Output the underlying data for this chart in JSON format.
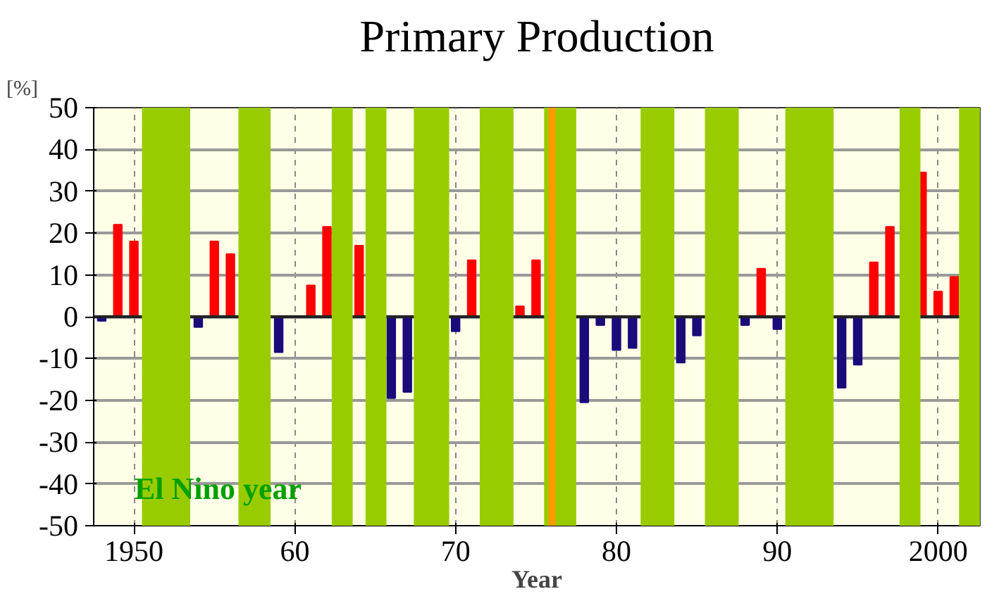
{
  "chart_data": {
    "type": "bar",
    "title": "Primary Production",
    "xlabel": "Year",
    "ylabel": "[%]",
    "x": [
      1948,
      1949,
      1950,
      1954,
      1955,
      1956,
      1959,
      1960,
      1961,
      1962,
      1964,
      1966,
      1967,
      1970,
      1971,
      1974,
      1975,
      1978,
      1979,
      1980,
      1981,
      1984,
      1985,
      1988,
      1989,
      1990,
      1994,
      1995,
      1996,
      1997,
      1999,
      2000,
      2001
    ],
    "values": [
      -1,
      22,
      18,
      -2.5,
      18,
      15,
      -8.5,
      null,
      7.5,
      21.5,
      17,
      -19.5,
      -18,
      -3.5,
      13.5,
      2.5,
      13.5,
      -20.5,
      -2,
      -8,
      -7.5,
      -11,
      -4.5,
      -2,
      11.5,
      -3,
      -17,
      -11.5,
      13,
      21.5,
      34.5,
      6,
      9.5
    ],
    "colors": [
      "#1a0a7a",
      "#ff0000",
      "#ff0000",
      "#1a0a7a",
      "#ff0000",
      "#ff0000",
      "#1a0a7a",
      "#1a0a7a",
      "#ff0000",
      "#ff0000",
      "#ff0000",
      "#1a0a7a",
      "#1a0a7a",
      "#1a0a7a",
      "#ff0000",
      "#ff0000",
      "#ff0000",
      "#1a0a7a",
      "#1a0a7a",
      "#1a0a7a",
      "#1a0a7a",
      "#1a0a7a",
      "#1a0a7a",
      "#1a0a7a",
      "#ff0000",
      "#1a0a7a",
      "#1a0a7a",
      "#1a0a7a",
      "#ff0000",
      "#ff0000",
      "#ff0000",
      "#ff0000",
      "#ff0000"
    ],
    "xlim": [
      1947.5,
      2002.6
    ],
    "ylim": [
      -50,
      50
    ],
    "xticks": [
      {
        "value": 1950,
        "label": "1950"
      },
      {
        "value": 1960,
        "label": "60"
      },
      {
        "value": 1970,
        "label": "70"
      },
      {
        "value": 1980,
        "label": "80"
      },
      {
        "value": 1990,
        "label": "90"
      },
      {
        "value": 2000,
        "label": "2000"
      }
    ],
    "yticks": [
      -50,
      -40,
      -30,
      -20,
      -10,
      0,
      10,
      20,
      30,
      40,
      50
    ],
    "grid": true,
    "bands": [
      {
        "axis": "x",
        "from": 1950.5,
        "to": 1953.5,
        "color": "#99cc00"
      },
      {
        "axis": "x",
        "from": 1956.5,
        "to": 1958.5,
        "color": "#99cc00"
      },
      {
        "axis": "x",
        "from": 1962.3,
        "to": 1963.6,
        "color": "#99cc00"
      },
      {
        "axis": "x",
        "from": 1964.4,
        "to": 1965.7,
        "color": "#99cc00"
      },
      {
        "axis": "x",
        "from": 1967.4,
        "to": 1969.6,
        "color": "#99cc00"
      },
      {
        "axis": "x",
        "from": 1971.5,
        "to": 1973.6,
        "color": "#99cc00"
      },
      {
        "axis": "x",
        "from": 1975.5,
        "to": 1977.5,
        "color": "#99cc00"
      },
      {
        "axis": "x",
        "from": 1981.5,
        "to": 1983.6,
        "color": "#99cc00"
      },
      {
        "axis": "x",
        "from": 1985.5,
        "to": 1987.6,
        "color": "#99cc00"
      },
      {
        "axis": "x",
        "from": 1990.5,
        "to": 1993.5,
        "color": "#99cc00"
      },
      {
        "axis": "x",
        "from": 1997.6,
        "to": 1998.9,
        "color": "#99cc00"
      },
      {
        "axis": "x",
        "from": 2001.3,
        "to": 2002.6,
        "color": "#99cc00"
      }
    ],
    "ref_lines": [
      {
        "axis": "x",
        "value": 1976,
        "color": "#ff9900"
      }
    ],
    "annotations": [
      "El Nino year"
    ]
  }
}
